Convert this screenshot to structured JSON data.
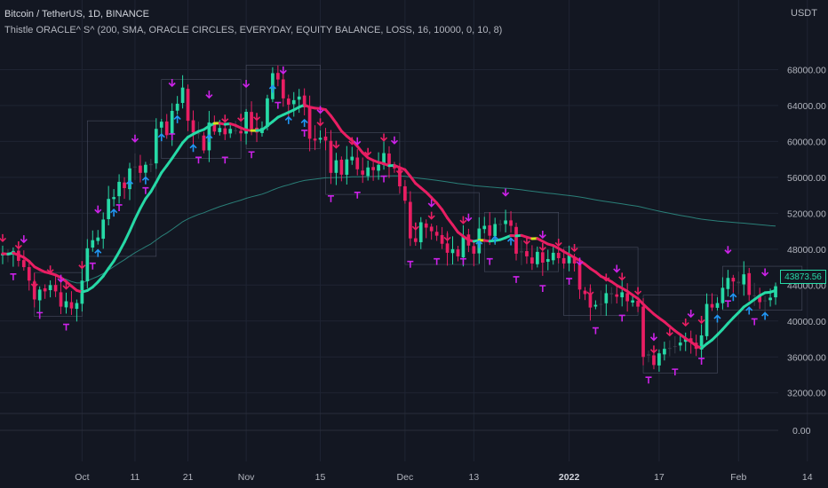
{
  "header": {
    "symbol_line": "Bitcoin / TetherUS, 1D, BINANCE",
    "indicator_line": "Thistle ORACLE^ S^ (200, SMA, ORACLE CIRCLES, EVERYDAY, EQUITY BALANCE, LOSS, 16, 10000, 0, 10, 8)"
  },
  "price_axis": {
    "unit_label": "USDT",
    "last_price_label": "43873.56",
    "ticks_main": [
      68000,
      64000,
      60000,
      56000,
      52000,
      48000,
      44000,
      40000,
      36000,
      32000
    ],
    "tick_labels_main": [
      "68000.00",
      "64000.00",
      "60000.00",
      "56000.00",
      "52000.00",
      "48000.00",
      "44000.00",
      "40000.00",
      "36000.00",
      "32000.00"
    ],
    "sub_pane_tick_label": "0.00"
  },
  "time_axis": {
    "labels": [
      {
        "label": "Oct",
        "bar": 15
      },
      {
        "label": "11",
        "bar": 25
      },
      {
        "label": "21",
        "bar": 35
      },
      {
        "label": "Nov",
        "bar": 46
      },
      {
        "label": "15",
        "bar": 60
      },
      {
        "label": "Dec",
        "bar": 76
      },
      {
        "label": "13",
        "bar": 89
      },
      {
        "label": "2022",
        "bar": 107
      },
      {
        "label": "17",
        "bar": 124
      },
      {
        "label": "Feb",
        "bar": 139
      },
      {
        "label": "14",
        "bar": 152
      }
    ]
  },
  "colors": {
    "background": "#131722",
    "grid": "#1f2433",
    "bull": "#26d9a6",
    "bear": "#e91e63",
    "neutral": "#3a3e4a",
    "ma_up": "#26d9a6",
    "ma_down": "#e91e63",
    "ma_flat": "#d4e21e",
    "ma_long": "#2a7f78",
    "arrow_sell": "#e91e63",
    "arrow_buy": "#2196f3",
    "pitch": "#cc22e8",
    "axis_text": "#b2b5be",
    "box": "#4a4f62"
  },
  "chart_data": {
    "type": "candlestick",
    "symbol": "Bitcoin / TetherUS",
    "interval": "1D",
    "exchange": "BINANCE",
    "y_range": [
      29800,
      71800
    ],
    "closes": [
      47500,
      47400,
      47800,
      46700,
      46000,
      44500,
      42400,
      43500,
      43300,
      44000,
      43300,
      41600,
      42200,
      41400,
      42000,
      44500,
      48100,
      49000,
      49300,
      51300,
      53600,
      53800,
      55500,
      54800,
      57000,
      57200,
      56500,
      57400,
      57500,
      61400,
      62200,
      60700,
      63400,
      64200,
      66000,
      62300,
      61000,
      60800,
      59000,
      62100,
      61100,
      61500,
      60800,
      61400,
      61200,
      60900,
      63300,
      61400,
      61000,
      61500,
      64800,
      67600,
      66900,
      64800,
      64100,
      64600,
      65000,
      63800,
      60300,
      60100,
      60400,
      60100,
      56500,
      57900,
      56300,
      58000,
      58300,
      56900,
      56300,
      57100,
      56800,
      57400,
      58700,
      57300,
      57000,
      55000,
      53400,
      49200,
      48800,
      51000,
      50400,
      50000,
      49500,
      48600,
      47600,
      48000,
      47200,
      49500,
      48400,
      47500,
      50300,
      50600,
      49500,
      50800,
      50700,
      51200,
      50600,
      47500,
      47800,
      47200,
      46400,
      47700,
      46500,
      46900,
      47600,
      47000,
      46400,
      47300,
      46400,
      43500,
      43000,
      41500,
      41800,
      41900,
      43100,
      43100,
      42700,
      43200,
      42200,
      42300,
      41600,
      36000,
      36300,
      35100,
      36400,
      36900,
      37000,
      37200,
      37600,
      38100,
      37700,
      36900,
      38400,
      41900,
      41500,
      42000,
      43700,
      44800,
      44400,
      44200,
      45200,
      42900,
      42800,
      42100,
      42300,
      42600,
      43873
    ],
    "moving_averages": [
      {
        "period": 200,
        "kind": "SMA"
      },
      {
        "kind": "short MA"
      }
    ],
    "last_price": 43873.56
  }
}
